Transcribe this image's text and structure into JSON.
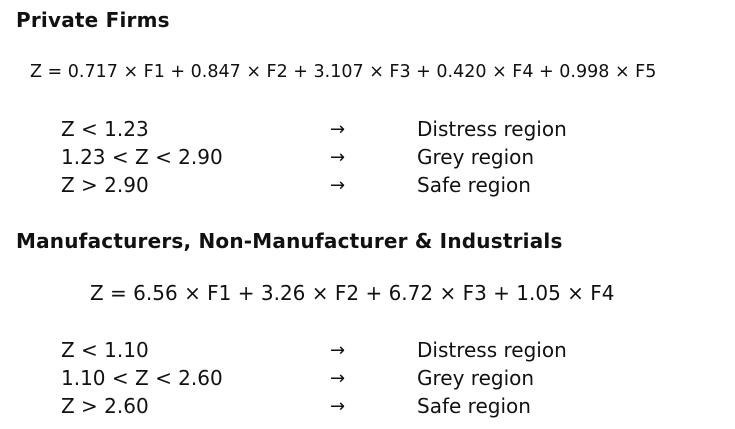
{
  "sections": [
    {
      "heading": "Private Firms",
      "formula": "Z = 0.717 × F1 + 0.847 × F2 + 3.107 × F3 + 0.420 × F4 + 0.998 × F5",
      "rows": [
        {
          "condition": "Z < 1.23",
          "arrow": "→",
          "region": "Distress region"
        },
        {
          "condition": "1.23 < Z < 2.90",
          "arrow": "→",
          "region": "Grey region"
        },
        {
          "condition": "Z > 2.90",
          "arrow": "→",
          "region": "Safe region"
        }
      ]
    },
    {
      "heading": "Manufacturers, Non-Manufacturer & Industrials",
      "formula": "Z = 6.56 × F1 + 3.26 × F2 + 6.72 × F3 + 1.05 × F4",
      "rows": [
        {
          "condition": "Z < 1.10",
          "arrow": "→",
          "region": "Distress region"
        },
        {
          "condition": "1.10 < Z < 2.60",
          "arrow": "→",
          "region": "Grey region"
        },
        {
          "condition": "Z > 2.60",
          "arrow": "→",
          "region": "Safe region"
        }
      ]
    }
  ]
}
